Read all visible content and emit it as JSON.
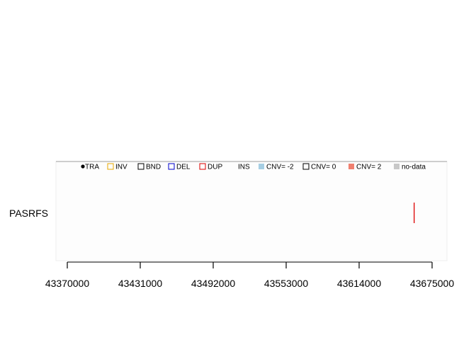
{
  "chart_data": {
    "type": "scatter",
    "title": "",
    "xlabel": "",
    "ylabel": "",
    "xlim": [
      43360000,
      43680000
    ],
    "x_ticks": [
      43370000,
      43431000,
      43492000,
      43553000,
      43614000,
      43675000
    ],
    "x_tick_labels": [
      "43370000",
      "43431000",
      "43492000",
      "43553000",
      "43614000",
      "43675000"
    ],
    "tracks": [
      {
        "label": "PASRFS"
      }
    ],
    "legend": {
      "placement": "top",
      "entries": [
        {
          "label": "TRA",
          "marker": "dot",
          "color": "#000000"
        },
        {
          "label": "INV",
          "marker": "box",
          "color": "#e6a700"
        },
        {
          "label": "BND",
          "marker": "box",
          "color": "#000000"
        },
        {
          "label": "DEL",
          "marker": "box",
          "color": "#0000cc"
        },
        {
          "label": "DUP",
          "marker": "box",
          "color": "#dd0000"
        },
        {
          "label": "INS",
          "marker": "none",
          "color": "#000000"
        },
        {
          "label": "CNV= -2",
          "marker": "fill",
          "color": "#a6cee3"
        },
        {
          "label": "CNV= 0",
          "marker": "box",
          "color": "#000000"
        },
        {
          "label": "CNV= 2",
          "marker": "fill",
          "color": "#f08070"
        },
        {
          "label": "no-data",
          "marker": "fill",
          "color": "#c8c8c8"
        }
      ]
    },
    "events": [
      {
        "track": "PASRFS",
        "type": "DUP",
        "position": 43660000,
        "color": "#dd0000"
      }
    ]
  }
}
